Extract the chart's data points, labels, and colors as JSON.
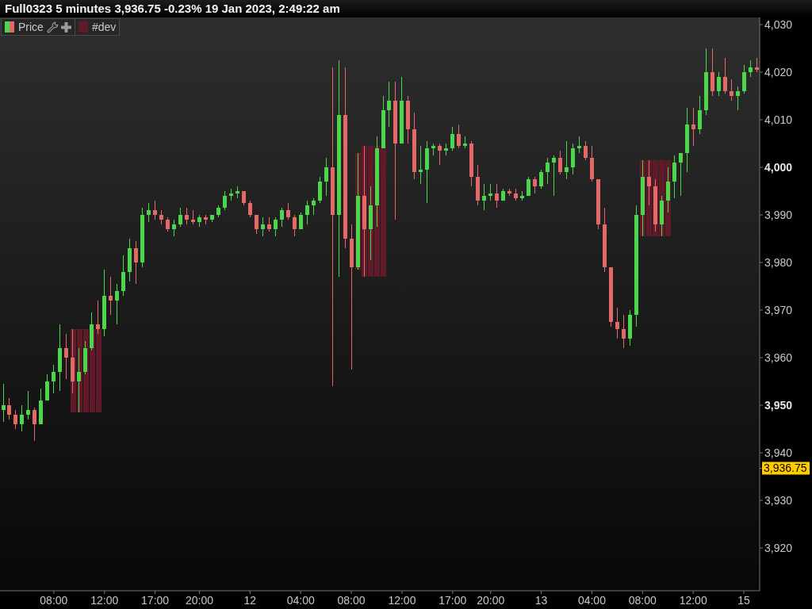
{
  "chart_data": {
    "type": "candlestick",
    "title": "Full0323 5 minutes 3,936.75 -0.23% 19 Jan 2023, 2:49:22 am",
    "categories": [
      null,
      null,
      null,
      null,
      null,
      null,
      null,
      null,
      "08:00",
      null,
      null,
      null,
      null,
      null,
      null,
      null,
      "12:00",
      null,
      null,
      null,
      null,
      null,
      null,
      null,
      "17:00",
      null,
      null,
      null,
      null,
      null,
      null,
      "20:00",
      null,
      null,
      null,
      null,
      null,
      null,
      null,
      "12",
      null,
      null,
      null,
      null,
      null,
      null,
      null,
      "04:00",
      null,
      null,
      null,
      null,
      null,
      null,
      null,
      "08:00",
      null,
      null,
      null,
      null,
      null,
      null,
      null,
      "12:00",
      null,
      null,
      null,
      null,
      null,
      null,
      null,
      "17:00",
      null,
      null,
      null,
      null,
      null,
      "20:00",
      null,
      null,
      null,
      null,
      null,
      null,
      null,
      "13",
      null,
      null,
      null,
      null,
      null,
      null,
      null,
      "04:00",
      null,
      null,
      null,
      null,
      null,
      null,
      null,
      "08:00",
      null,
      null,
      null,
      null,
      null,
      null,
      null,
      "12:00",
      null,
      null,
      null,
      null,
      null,
      null,
      null,
      "15",
      null,
      null
    ],
    "series": [
      {
        "name": "Price",
        "ohlc": [
          [
            3949,
            3954.5,
            3946.5,
            3950
          ],
          [
            3950,
            3951.5,
            3947,
            3948
          ],
          [
            3948,
            3949,
            3945,
            3946
          ],
          [
            3946,
            3950,
            3944.5,
            3948
          ],
          [
            3948,
            3953,
            3947,
            3949
          ],
          [
            3949,
            3949.5,
            3942.5,
            3946
          ],
          [
            3946,
            3953.5,
            3946,
            3951
          ],
          [
            3951,
            3956.5,
            3951,
            3955
          ],
          [
            3955,
            3958.5,
            3952.5,
            3957
          ],
          [
            3957,
            3967,
            3953,
            3962
          ],
          [
            3962,
            3965,
            3955.5,
            3960
          ],
          [
            3960,
            3966,
            3952.5,
            3955
          ],
          [
            3955,
            3962,
            3948.5,
            3957
          ],
          [
            3957,
            3963.5,
            3956.5,
            3962
          ],
          [
            3962,
            3969.5,
            3961.5,
            3967
          ],
          [
            3967,
            3972,
            3965,
            3966
          ],
          [
            3966,
            3978.5,
            3964.5,
            3973
          ],
          [
            3973,
            3977,
            3969,
            3972
          ],
          [
            3972,
            3975.5,
            3967,
            3974
          ],
          [
            3974,
            3981.5,
            3973,
            3978
          ],
          [
            3978,
            3985,
            3976,
            3983
          ],
          [
            3983,
            3984.5,
            3975.5,
            3980
          ],
          [
            3980,
            3991.5,
            3979,
            3990
          ],
          [
            3990,
            3992.5,
            3988.5,
            3991
          ],
          [
            3991,
            3993,
            3989,
            3990
          ],
          [
            3990,
            3991,
            3988,
            3989
          ],
          [
            3989,
            3989.5,
            3986.5,
            3987
          ],
          [
            3987,
            3989,
            3985.5,
            3988
          ],
          [
            3988,
            3991.5,
            3987.5,
            3990
          ],
          [
            3990,
            3991.5,
            3988,
            3989
          ],
          [
            3989,
            3991,
            3988,
            3988.5
          ],
          [
            3988.5,
            3990,
            3987.5,
            3989.5
          ],
          [
            3989.5,
            3990,
            3988,
            3989
          ],
          [
            3989,
            3990,
            3988.5,
            3990
          ],
          [
            3990,
            3992,
            3989.5,
            3991.5
          ],
          [
            3991.5,
            3995,
            3991,
            3994
          ],
          [
            3994,
            3995.5,
            3993,
            3994.5
          ],
          [
            3994.5,
            3996,
            3993.5,
            3995
          ],
          [
            3995,
            3995,
            3992,
            3992.5
          ],
          [
            3992.5,
            3993,
            3989.5,
            3990
          ],
          [
            3990,
            3990,
            3986,
            3987
          ],
          [
            3987,
            3989.5,
            3985.5,
            3988
          ],
          [
            3988,
            3989.5,
            3986.5,
            3987
          ],
          [
            3987,
            3989.5,
            3985.5,
            3989
          ],
          [
            3989,
            3991.5,
            3987.5,
            3991
          ],
          [
            3991,
            3992.5,
            3989,
            3989.5
          ],
          [
            3989.5,
            3990,
            3985.5,
            3987
          ],
          [
            3987,
            3990.5,
            3987,
            3990
          ],
          [
            3990,
            3993,
            3988,
            3992
          ],
          [
            3992,
            3993.5,
            3990,
            3993
          ],
          [
            3993,
            3998,
            3992.5,
            3997
          ],
          [
            3997,
            4002,
            3994,
            4000
          ],
          [
            4000,
            4021,
            3954,
            3990
          ],
          [
            3990,
            4022.5,
            3977,
            4011
          ],
          [
            4011,
            4021,
            3983,
            3985
          ],
          [
            3985,
            3988,
            3957.5,
            3979
          ],
          [
            3979,
            4003,
            3978.5,
            3994
          ],
          [
            3994,
            4004.5,
            3977,
            3987
          ],
          [
            3987,
            3996,
            3980.5,
            3992
          ],
          [
            3992,
            4006.5,
            3987.5,
            4004
          ],
          [
            4004,
            4015,
            4004,
            4012
          ],
          [
            4012,
            4018,
            4008.5,
            4014
          ],
          [
            4014,
            4018,
            3989,
            4005
          ],
          [
            4005,
            4019,
            4005,
            4014
          ],
          [
            4014,
            4015,
            4005,
            4008
          ],
          [
            4008,
            4011.5,
            3997.5,
            3999
          ],
          [
            3999,
            4004.5,
            3996.5,
            3999.5
          ],
          [
            3999.5,
            4005.5,
            3992.5,
            4004
          ],
          [
            4004,
            4005,
            4002.5,
            4004.5
          ],
          [
            4004.5,
            4005,
            4000.5,
            4003.5
          ],
          [
            4003.5,
            4005,
            4002.5,
            4004
          ],
          [
            4004,
            4008.5,
            4003.5,
            4007
          ],
          [
            4007,
            4009,
            4004,
            4004.5
          ],
          [
            4004.5,
            4006.5,
            4004,
            4005
          ],
          [
            4005,
            4005.5,
            3996,
            3998
          ],
          [
            3998,
            4000.5,
            3992,
            3993
          ],
          [
            3993,
            3996.5,
            3991,
            3994
          ],
          [
            3994,
            3996.5,
            3993,
            3994.5
          ],
          [
            3994.5,
            3996.5,
            3991.5,
            3993
          ],
          [
            3993,
            3995.5,
            3993,
            3995
          ],
          [
            3995,
            3995.5,
            3994,
            3994.5
          ],
          [
            3994.5,
            3995.5,
            3993,
            3993.5
          ],
          [
            3993.5,
            3995,
            3993,
            3994
          ],
          [
            3994,
            3998,
            3994,
            3997.5
          ],
          [
            3997.5,
            3998,
            3994.5,
            3996
          ],
          [
            3996,
            3999.5,
            3995.5,
            3999
          ],
          [
            3999,
            4002,
            3996.5,
            4001
          ],
          [
            4001,
            4002.5,
            3994,
            4002
          ],
          [
            4002,
            4003.5,
            3998.5,
            3999
          ],
          [
            3999,
            4005.5,
            3997.5,
            4000
          ],
          [
            4000,
            4005,
            3998.5,
            4004
          ],
          [
            4004,
            4006.5,
            4003,
            4004.5
          ],
          [
            4004.5,
            4005.5,
            4001.5,
            4002
          ],
          [
            4002,
            4004.5,
            3997,
            3997.5
          ],
          [
            3997.5,
            3997.5,
            3987,
            3988
          ],
          [
            3988,
            3991.5,
            3978,
            3979
          ],
          [
            3979,
            3979,
            3966.5,
            3967.5
          ],
          [
            3967.5,
            3970.5,
            3964,
            3966
          ],
          [
            3966,
            3969,
            3962,
            3964
          ],
          [
            3964,
            3970,
            3962.5,
            3969
          ],
          [
            3969,
            3992,
            3966.5,
            3990
          ],
          [
            3990,
            4001.5,
            3985.5,
            3998
          ],
          [
            3998,
            4001.5,
            3992,
            3996
          ],
          [
            3996,
            3997.5,
            3986.5,
            3988
          ],
          [
            3988,
            3994,
            3985.5,
            3993
          ],
          [
            3993,
            4000,
            3990.5,
            3997
          ],
          [
            3997,
            4002.5,
            3993.5,
            4001
          ],
          [
            4001,
            4003,
            3994,
            4003
          ],
          [
            4003,
            4012.5,
            3999,
            4009
          ],
          [
            4009,
            4012.5,
            4004.5,
            4008
          ],
          [
            4008,
            4015,
            4007,
            4012
          ],
          [
            4012,
            4025,
            4011,
            4020
          ],
          [
            4020,
            4025,
            4015,
            4016
          ],
          [
            4016,
            4020,
            4015,
            4019
          ],
          [
            4019,
            4023,
            4015.5,
            4016
          ],
          [
            4016,
            4018.5,
            4014,
            4015
          ],
          [
            4015,
            4017,
            4012,
            4016
          ],
          [
            4016,
            4021.5,
            4015.5,
            4020
          ],
          [
            4020,
            4022.5,
            4019,
            4021
          ],
          [
            4021,
            4023,
            4020,
            4020.5
          ]
        ],
        "colors": [
          "#4cd64c",
          "#e36868",
          "#e36868",
          "#4cd64c",
          "#4cd64c",
          "#e36868",
          "#4cd64c",
          "#4cd64c",
          "#4cd64c",
          "#4cd64c",
          "#e36868",
          "#e36868",
          "#4cd64c",
          "#4cd64c",
          "#4cd64c",
          "#e36868",
          "#4cd64c",
          "#e36868",
          "#4cd64c",
          "#4cd64c",
          "#4cd64c",
          "#e36868",
          "#4cd64c",
          "#4cd64c",
          "#e36868",
          "#e36868",
          "#e36868",
          "#4cd64c",
          "#4cd64c",
          "#e36868",
          "#e36868",
          "#4cd64c",
          "#e36868",
          "#4cd64c",
          "#4cd64c",
          "#4cd64c",
          "#4cd64c",
          "#4cd64c",
          "#e36868",
          "#e36868",
          "#e36868",
          "#4cd64c",
          "#e36868",
          "#4cd64c",
          "#4cd64c",
          "#e36868",
          "#e36868",
          "#4cd64c",
          "#4cd64c",
          "#4cd64c",
          "#4cd64c",
          "#4cd64c",
          "#e36868",
          "#4cd64c",
          "#e36868",
          "#e36868",
          "#4cd64c",
          "#e36868",
          "#4cd64c",
          "#4cd64c",
          "#4cd64c",
          "#4cd64c",
          "#e36868",
          "#4cd64c",
          "#e36868",
          "#e36868",
          "#4cd64c",
          "#4cd64c",
          "#4cd64c",
          "#e36868",
          "#4cd64c",
          "#4cd64c",
          "#e36868",
          "#4cd64c",
          "#e36868",
          "#e36868",
          "#4cd64c",
          "#4cd64c",
          "#e36868",
          "#4cd64c",
          "#e36868",
          "#e36868",
          "#4cd64c",
          "#4cd64c",
          "#e36868",
          "#4cd64c",
          "#4cd64c",
          "#4cd64c",
          "#e36868",
          "#4cd64c",
          "#4cd64c",
          "#4cd64c",
          "#e36868",
          "#e36868",
          "#e36868",
          "#e36868",
          "#e36868",
          "#e36868",
          "#e36868",
          "#4cd64c",
          "#4cd64c",
          "#4cd64c",
          "#e36868",
          "#e36868",
          "#4cd64c",
          "#4cd64c",
          "#4cd64c",
          "#4cd64c",
          "#4cd64c",
          "#e36868",
          "#4cd64c",
          "#4cd64c",
          "#e36868",
          "#4cd64c",
          "#e36868",
          "#e36868",
          "#4cd64c",
          "#4cd64c",
          "#4cd64c",
          "#e36868"
        ]
      },
      {
        "name": "#dev",
        "type": "bar",
        "color": "#601a2a",
        "base": [
          null,
          null,
          null,
          null,
          null,
          null,
          null,
          null,
          null,
          null,
          null,
          3948.5,
          3948.5,
          3948.5,
          3948.5,
          3948.5,
          null,
          null,
          null,
          null,
          null,
          null,
          null,
          null,
          null,
          null,
          null,
          null,
          null,
          null,
          null,
          null,
          null,
          null,
          null,
          null,
          null,
          null,
          null,
          null,
          null,
          null,
          null,
          null,
          null,
          null,
          null,
          null,
          null,
          null,
          null,
          null,
          null,
          null,
          null,
          null,
          3978.5,
          3977,
          3977,
          3977,
          3977,
          null,
          null,
          null,
          null,
          null,
          null,
          null,
          null,
          null,
          null,
          null,
          null,
          null,
          null,
          null,
          null,
          null,
          null,
          null,
          null,
          null,
          null,
          null,
          null,
          null,
          null,
          null,
          null,
          null,
          null,
          null,
          null,
          null,
          null,
          null,
          null,
          null,
          null,
          null,
          null,
          3985.5,
          3985.5,
          3985.5,
          3985.5,
          3985.5,
          null,
          null,
          null,
          null,
          null,
          null,
          null,
          null,
          null,
          null,
          null,
          null,
          null,
          null
        ],
        "values": [
          null,
          null,
          null,
          null,
          null,
          null,
          null,
          null,
          null,
          null,
          null,
          17.5,
          17.5,
          17.5,
          17.5,
          17.5,
          null,
          null,
          null,
          null,
          null,
          null,
          null,
          null,
          null,
          null,
          null,
          null,
          null,
          null,
          null,
          null,
          null,
          null,
          null,
          null,
          null,
          null,
          null,
          null,
          null,
          null,
          null,
          null,
          null,
          null,
          null,
          null,
          null,
          null,
          null,
          null,
          null,
          null,
          null,
          null,
          24.5,
          27.5,
          27.5,
          27.5,
          27.5,
          null,
          null,
          null,
          null,
          null,
          null,
          null,
          null,
          null,
          null,
          null,
          null,
          null,
          null,
          null,
          null,
          null,
          null,
          null,
          null,
          null,
          null,
          null,
          null,
          null,
          null,
          null,
          null,
          null,
          null,
          null,
          null,
          null,
          null,
          null,
          null,
          null,
          null,
          null,
          null,
          16,
          16,
          16,
          16,
          16,
          null,
          null,
          null,
          null,
          null,
          null,
          null,
          null,
          null,
          null,
          null,
          null,
          null,
          null
        ]
      }
    ],
    "ylim": [
      3911,
      4031.5
    ],
    "yticks": [
      {
        "value": 3920,
        "label": "3,920"
      },
      {
        "value": 3930,
        "label": "3,930"
      },
      {
        "value": 3936.75,
        "label": "3,936.75"
      },
      {
        "value": 3940,
        "label": "3,940"
      },
      {
        "value": 3950,
        "label": "3,950"
      },
      {
        "value": 3960,
        "label": "3,960"
      },
      {
        "value": 3970,
        "label": "3,970"
      },
      {
        "value": 3980,
        "label": "3,980"
      },
      {
        "value": 3990,
        "label": "3,990"
      },
      {
        "value": 4000,
        "label": "4,000"
      },
      {
        "value": 4010,
        "label": "4,010"
      },
      {
        "value": 4020,
        "label": "4,020"
      },
      {
        "value": 4030,
        "label": "4,030"
      }
    ],
    "legend": "top left"
  }
}
